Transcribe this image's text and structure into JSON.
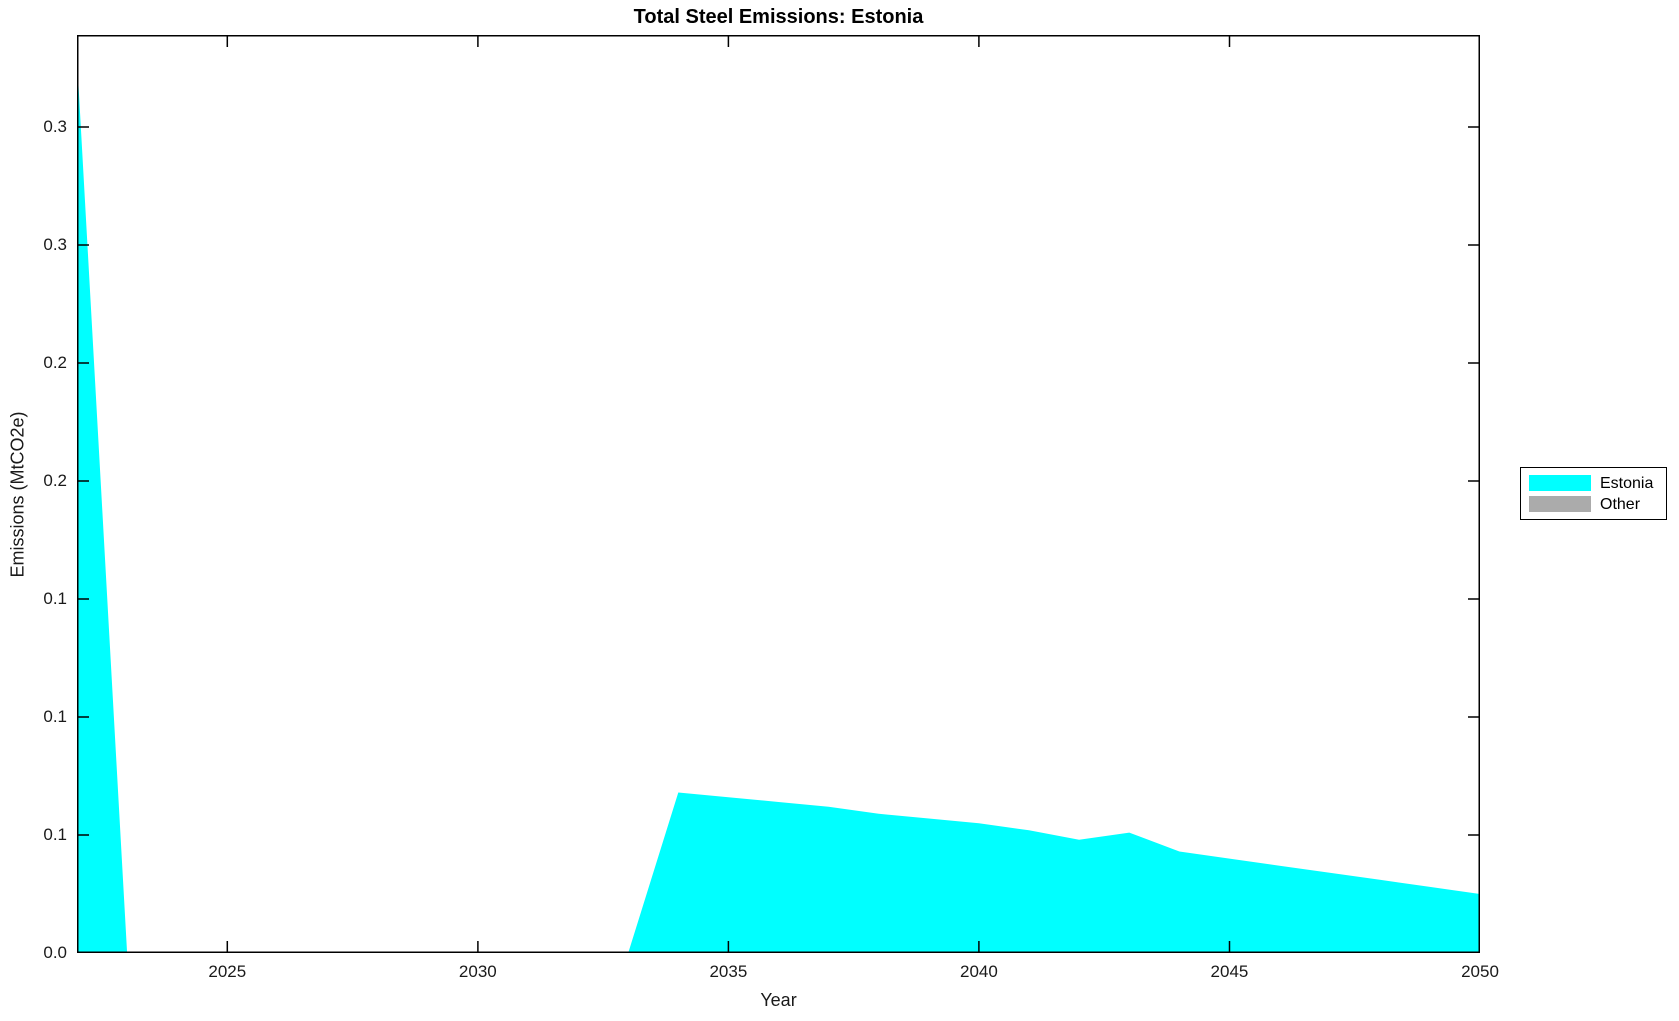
{
  "title": "Total Steel Emissions: Estonia",
  "xlabel": "Year",
  "ylabel": "Emissions (MtCO2e)",
  "legend": {
    "position": "right-outside",
    "entries": [
      {
        "label": "Estonia",
        "color": "#00ffff"
      },
      {
        "label": "Other",
        "color": "#ababab"
      }
    ]
  },
  "axes": {
    "x": {
      "min": 2022,
      "max": 2050,
      "tick_values": [
        2025,
        2030,
        2035,
        2040,
        2045,
        2050
      ],
      "tick_labels": [
        "2025",
        "2030",
        "2035",
        "2040",
        "2045",
        "2050"
      ]
    },
    "y": {
      "min": 0,
      "max": 0.389,
      "tick_values": [
        0,
        0.05,
        0.1,
        0.15,
        0.2,
        0.25,
        0.3,
        0.35
      ],
      "tick_labels": [
        "0.0",
        "0.1",
        "0.1",
        "0.1",
        "0.2",
        "0.2",
        "0.3",
        "0.3"
      ]
    }
  },
  "chart_data": {
    "type": "area",
    "title": "Total Steel Emissions: Estonia",
    "xlabel": "Year",
    "ylabel": "Emissions (MtCO2e)",
    "xlim": [
      2022,
      2050
    ],
    "ylim": [
      0,
      0.389
    ],
    "grid": false,
    "legend_position": "right-outside",
    "x": [
      2022,
      2023,
      2024,
      2025,
      2026,
      2027,
      2028,
      2029,
      2030,
      2031,
      2032,
      2033,
      2034,
      2035,
      2036,
      2037,
      2038,
      2039,
      2040,
      2041,
      2042,
      2043,
      2044,
      2045,
      2046,
      2047,
      2048,
      2049,
      2050
    ],
    "series": [
      {
        "name": "Estonia",
        "color": "#00ffff",
        "values": [
          0.379,
          0,
          0,
          0,
          0,
          0,
          0,
          0,
          0,
          0,
          0,
          0,
          0.068,
          0.066,
          0.064,
          0.062,
          0.059,
          0.057,
          0.055,
          0.052,
          0.048,
          0.051,
          0.043,
          0.04,
          0.037,
          0.034,
          0.031,
          0.028,
          0.025
        ]
      },
      {
        "name": "Other",
        "color": "#ababab",
        "values": [
          0,
          0,
          0,
          0,
          0,
          0,
          0,
          0,
          0,
          0,
          0,
          0,
          0,
          0,
          0,
          0,
          0,
          0,
          0,
          0,
          0,
          0,
          0,
          0,
          0,
          0,
          0,
          0,
          0
        ]
      }
    ]
  }
}
